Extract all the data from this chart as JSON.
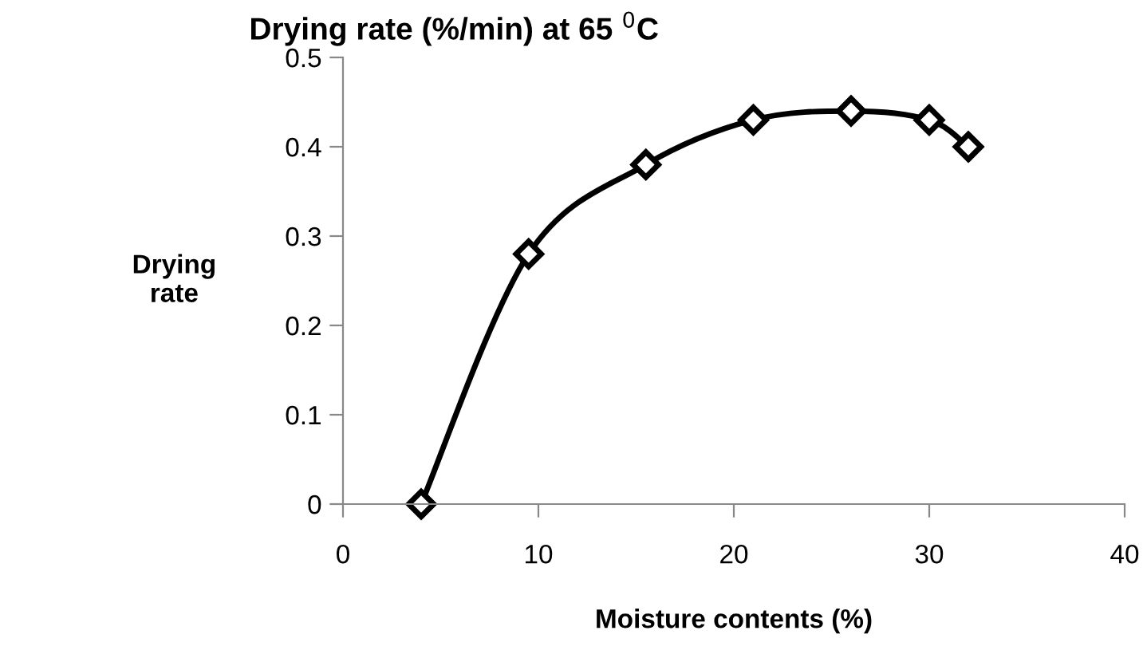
{
  "chart_data": {
    "type": "line",
    "title": "Drying rate (%/min) at 65 $^{0}$C",
    "xlabel": "Moisture contents (%)",
    "ylabel": "Drying\nrate",
    "x": [
      4,
      9.5,
      15.5,
      21,
      26,
      30,
      32
    ],
    "series": [
      {
        "color": "#000000",
        "values": [
          0,
          0.28,
          0.38,
          0.43,
          0.44,
          0.43,
          0.4
        ]
      }
    ],
    "marker": "diamond",
    "line_style": "solid",
    "grid": false,
    "legend": false,
    "xlim": [
      0,
      40
    ],
    "xticks": [
      0,
      10,
      20,
      30,
      40
    ],
    "ylim": [
      0,
      0.5
    ],
    "yticks": [
      0,
      0.1,
      0.2,
      0.3,
      0.4,
      0.5
    ]
  }
}
